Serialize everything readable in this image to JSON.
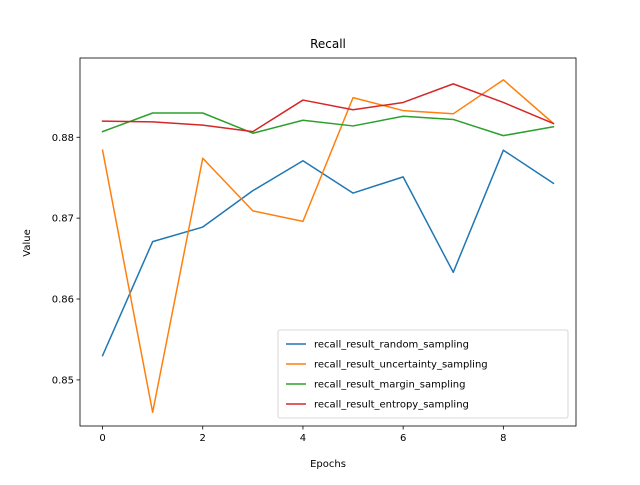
{
  "chart_data": {
    "type": "line",
    "title": "Recall",
    "xlabel": "Epochs",
    "ylabel": "Value",
    "x": [
      0,
      1,
      2,
      3,
      4,
      5,
      6,
      7,
      8,
      9
    ],
    "xticks": [
      0,
      2,
      4,
      6,
      8
    ],
    "yticks": [
      0.85,
      0.86,
      0.87,
      0.88
    ],
    "ytick_labels": [
      "0.85",
      "0.86",
      "0.87",
      "0.88"
    ],
    "xlim": [
      -0.45,
      9.45
    ],
    "ylim": [
      0.8443,
      0.8898
    ],
    "grid": false,
    "legend_position": "lower right",
    "series": [
      {
        "name": "recall_result_random_sampling",
        "color": "#1f77b4",
        "values": [
          0.853,
          0.8671,
          0.8689,
          0.8734,
          0.8771,
          0.8731,
          0.8751,
          0.8633,
          0.8784,
          0.8743
        ]
      },
      {
        "name": "recall_result_uncertainty_sampling",
        "color": "#ff7f0e",
        "values": [
          0.8784,
          0.846,
          0.8774,
          0.8709,
          0.8696,
          0.8849,
          0.8833,
          0.8829,
          0.8871,
          0.8817
        ]
      },
      {
        "name": "recall_result_margin_sampling",
        "color": "#2ca02c",
        "values": [
          0.8807,
          0.883,
          0.883,
          0.8805,
          0.8821,
          0.8814,
          0.8826,
          0.8822,
          0.8802,
          0.8813
        ]
      },
      {
        "name": "recall_result_entropy_sampling",
        "color": "#d62728",
        "values": [
          0.882,
          0.8819,
          0.8815,
          0.8807,
          0.8846,
          0.8834,
          0.8843,
          0.8866,
          0.8843,
          0.8817
        ]
      }
    ]
  }
}
